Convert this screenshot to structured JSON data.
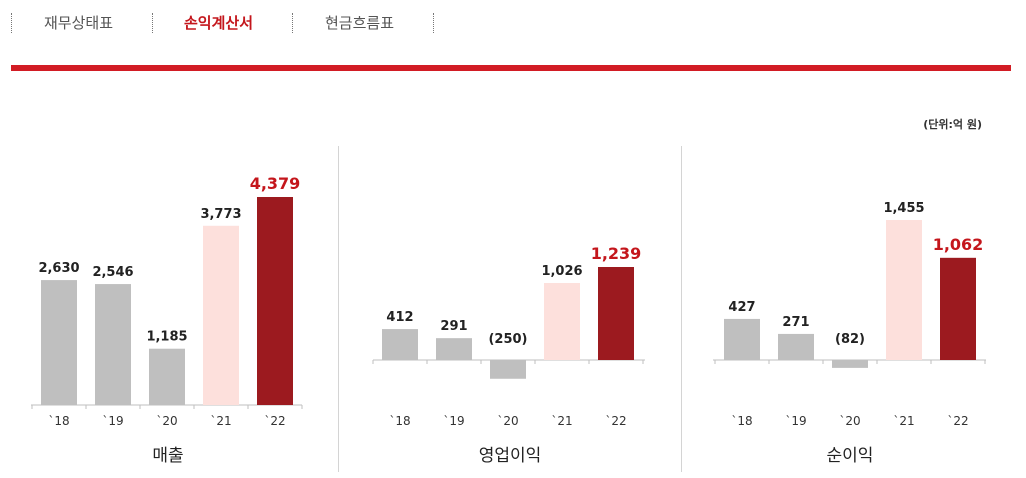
{
  "tabs": [
    {
      "label": "재무상태표",
      "active": false
    },
    {
      "label": "손익계산서",
      "active": true
    },
    {
      "label": "현금흐름표",
      "active": false
    }
  ],
  "unit_label": "(단위:억 원)",
  "colors": {
    "past": "#bfbfbf",
    "prev_year": "#fde0dc",
    "current": "#9c1a1f",
    "current_label": "#c4161c",
    "accent": "#d21c24"
  },
  "chart_data": [
    {
      "type": "bar",
      "title": "매출",
      "categories": [
        "`18",
        "`19",
        "`20",
        "`21",
        "`22"
      ],
      "values": [
        2630,
        2546,
        1185,
        3773,
        4379
      ],
      "value_labels": [
        "2,630",
        "2,546",
        "1,185",
        "3,773",
        "4,379"
      ]
    },
    {
      "type": "bar",
      "title": "영업이익",
      "categories": [
        "`18",
        "`19",
        "`20",
        "`21",
        "`22"
      ],
      "values": [
        412,
        291,
        -250,
        1026,
        1239
      ],
      "value_labels": [
        "412",
        "291",
        "(250)",
        "1,026",
        "1,239"
      ]
    },
    {
      "type": "bar",
      "title": "순이익",
      "categories": [
        "`18",
        "`19",
        "`20",
        "`21",
        "`22"
      ],
      "values": [
        427,
        271,
        -82,
        1455,
        1062
      ],
      "value_labels": [
        "427",
        "271",
        "(82)",
        "1,455",
        "1,062"
      ]
    }
  ]
}
